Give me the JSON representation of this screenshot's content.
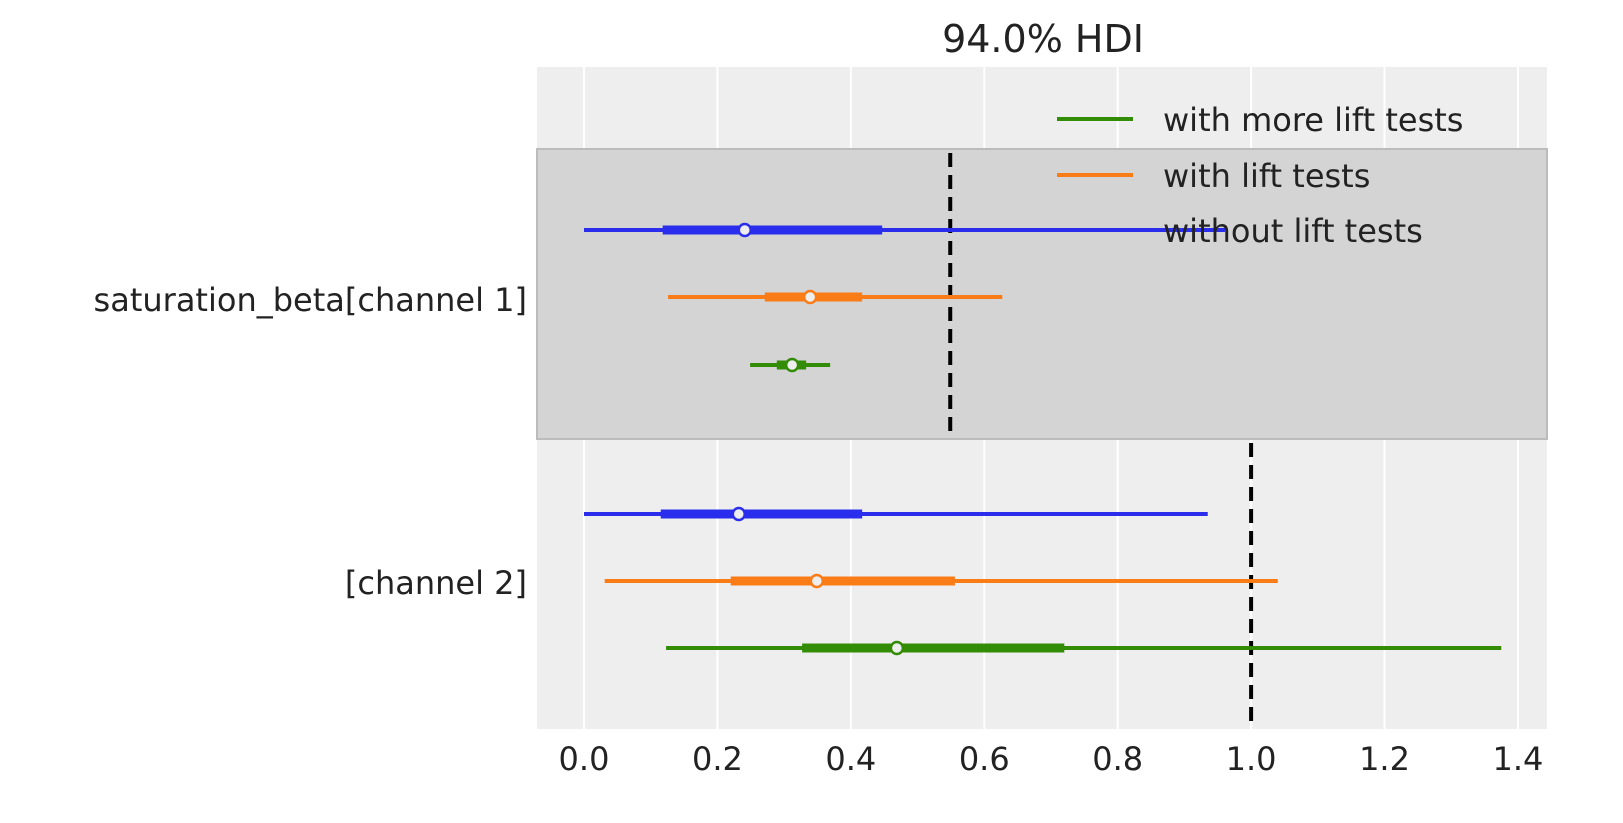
{
  "chart_data": {
    "type": "forest",
    "title": "94.0% HDI",
    "xlim": [
      -0.07,
      1.445
    ],
    "xticks": [
      "0.0",
      "0.2",
      "0.4",
      "0.6",
      "0.8",
      "1.0",
      "1.2",
      "1.4"
    ],
    "xtick_values": [
      0,
      0.2,
      0.4,
      0.6,
      0.8,
      1.0,
      1.2,
      1.4
    ],
    "grid": true,
    "legend_placement": "top-right",
    "legend": [
      "with more lift tests",
      "with lift tests",
      "without lift tests"
    ],
    "groups": [
      {
        "label": "saturation_beta[channel 1]",
        "shaded": true,
        "reference_line": 0.549,
        "series": [
          {
            "name": "without lift tests",
            "color": "#2a2eec",
            "hdi94": [
              0.0,
              0.961
            ],
            "iqr": [
              0.118,
              0.447
            ],
            "median": 0.241
          },
          {
            "name": "with lift tests",
            "color": "#fa7c17",
            "hdi94": [
              0.126,
              0.627
            ],
            "iqr": [
              0.271,
              0.417
            ],
            "median": 0.339
          },
          {
            "name": "with more lift tests",
            "color": "#328c06",
            "hdi94": [
              0.249,
              0.369
            ],
            "iqr": [
              0.289,
              0.333
            ],
            "median": 0.312
          }
        ]
      },
      {
        "label": "[channel 2]",
        "shaded": false,
        "reference_line": 1.0,
        "series": [
          {
            "name": "without lift tests",
            "color": "#2a2eec",
            "hdi94": [
              0.0,
              0.935
            ],
            "iqr": [
              0.115,
              0.417
            ],
            "median": 0.232
          },
          {
            "name": "with lift tests",
            "color": "#fa7c17",
            "hdi94": [
              0.031,
              1.04
            ],
            "iqr": [
              0.22,
              0.556
            ],
            "median": 0.349
          },
          {
            "name": "with more lift tests",
            "color": "#328c06",
            "hdi94": [
              0.123,
              1.375
            ],
            "iqr": [
              0.327,
              0.72
            ],
            "median": 0.469
          }
        ]
      }
    ],
    "legend_colors": [
      "#328c06",
      "#fa7c17",
      "#2a2eec"
    ]
  }
}
